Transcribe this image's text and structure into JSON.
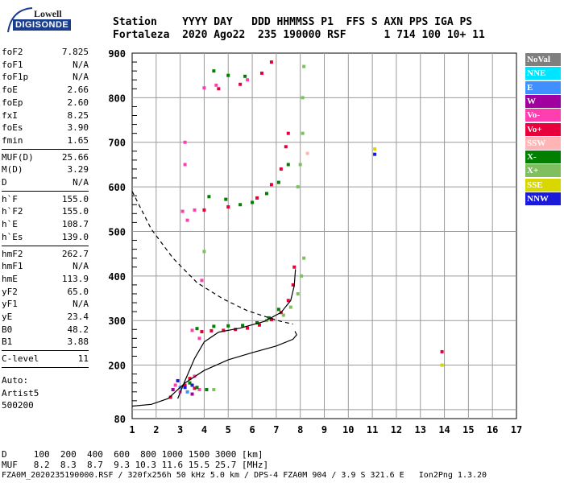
{
  "logo": {
    "line1": "Lowell",
    "line2": "DIGISONDE"
  },
  "header": {
    "line1": "Station    YYYY DAY   DDD HHMMSS P1  FFS S AXN PPS IGA PS",
    "line2": "Fortaleza  2020 Ago22  235 190000 RSF      1 714 100 10+ 11"
  },
  "params_a": [
    {
      "k": "foF2",
      "v": "7.825"
    },
    {
      "k": "foF1",
      "v": "N/A"
    },
    {
      "k": "foF1p",
      "v": "N/A"
    },
    {
      "k": "foE",
      "v": "2.66"
    },
    {
      "k": "foEp",
      "v": "2.60"
    },
    {
      "k": "fxI",
      "v": "8.25"
    },
    {
      "k": "foEs",
      "v": "3.90"
    },
    {
      "k": "fmin",
      "v": "1.65"
    }
  ],
  "params_b": [
    {
      "k": "MUF(D)",
      "v": "25.66"
    },
    {
      "k": "M(D)",
      "v": "3.29"
    },
    {
      "k": "D",
      "v": "N/A"
    }
  ],
  "params_c": [
    {
      "k": "h`F",
      "v": "155.0"
    },
    {
      "k": "h`F2",
      "v": "155.0"
    },
    {
      "k": "h`E",
      "v": "108.7"
    },
    {
      "k": "h`Es",
      "v": "139.0"
    }
  ],
  "params_d": [
    {
      "k": "hmF2",
      "v": "262.7"
    },
    {
      "k": "hmF1",
      "v": "N/A"
    },
    {
      "k": "hmE",
      "v": "113.9"
    },
    {
      "k": "yF2",
      "v": "65.0"
    },
    {
      "k": "yF1",
      "v": "N/A"
    },
    {
      "k": "yE",
      "v": "23.4"
    },
    {
      "k": "B0",
      "v": "48.2"
    },
    {
      "k": "B1",
      "v": "3.88"
    }
  ],
  "params_e": [
    {
      "k": "C-level",
      "v": "11"
    }
  ],
  "auto": {
    "l1": "Auto:",
    "l2": "Artist5",
    "l3": "500200"
  },
  "legend": [
    {
      "label": "NoVal",
      "color": "#7f7f7f",
      "text": "#ffffff"
    },
    {
      "label": "NNE",
      "color": "#00e5ff",
      "text": "#ffffff"
    },
    {
      "label": "E",
      "color": "#3f8fff",
      "text": "#ffffff"
    },
    {
      "label": "W",
      "color": "#a0009f",
      "text": "#ffffff"
    },
    {
      "label": "Vo-",
      "color": "#ff3fb0",
      "text": "#ffffff"
    },
    {
      "label": "Vo+",
      "color": "#e8003c",
      "text": "#ffffff"
    },
    {
      "label": "SSW",
      "color": "#ffb5b5",
      "text": "#ffffff"
    },
    {
      "label": "X-",
      "color": "#007f00",
      "text": "#ffffff"
    },
    {
      "label": "X+",
      "color": "#7fbf5f",
      "text": "#ffffff"
    },
    {
      "label": "SSE",
      "color": "#d8d800",
      "text": "#ffffff"
    },
    {
      "label": "NNW",
      "color": "#1a1ad8",
      "text": "#ffffff"
    }
  ],
  "bottom": {
    "line1": "D     100  200  400  600  800 1000 1500 3000 [km]",
    "line2": "MUF   8.2  8.3  8.7  9.3 10.3 11.6 15.5 25.7 [MHz]",
    "line3": "FZA0M_2020235190000.RSF / 320fx256h 50 kHz 5.0 km / DPS-4 FZA0M 904 / 3.9 S 321.6 E   Ion2Png 1.3.20"
  },
  "chart_data": {
    "type": "scatter",
    "title": "",
    "xlabel": "",
    "ylabel": "",
    "xlim": [
      1,
      17
    ],
    "ylim": [
      80,
      900
    ],
    "x_ticks": [
      1,
      2,
      3,
      4,
      5,
      6,
      7,
      8,
      9,
      10,
      11,
      12,
      13,
      14,
      15,
      16,
      17
    ],
    "y_ticks": [
      100,
      200,
      300,
      400,
      500,
      600,
      700,
      800,
      900
    ],
    "y_tick_labels": [
      "",
      "200",
      "300",
      "400",
      "500",
      "600",
      "700",
      "800",
      "900"
    ],
    "y_bottom_label": "80",
    "grid": true,
    "series": [
      {
        "name": "Vo+",
        "color": "#e8003c",
        "points": [
          [
            3.9,
            275
          ],
          [
            4.3,
            277
          ],
          [
            4.8,
            278
          ],
          [
            5.3,
            280
          ],
          [
            5.8,
            283
          ],
          [
            6.3,
            290
          ],
          [
            6.8,
            302
          ],
          [
            7.2,
            318
          ],
          [
            7.5,
            345
          ],
          [
            7.7,
            380
          ],
          [
            7.75,
            420
          ],
          [
            3.2,
            155
          ],
          [
            3.6,
            148
          ],
          [
            2.6,
            128
          ],
          [
            3.4,
            170
          ],
          [
            4.0,
            548
          ],
          [
            5.0,
            555
          ],
          [
            6.2,
            575
          ],
          [
            6.8,
            605
          ],
          [
            7.2,
            640
          ],
          [
            7.4,
            690
          ],
          [
            7.5,
            720
          ],
          [
            4.6,
            820
          ],
          [
            5.5,
            830
          ],
          [
            6.4,
            855
          ],
          [
            6.8,
            880
          ],
          [
            13.9,
            230
          ]
        ]
      },
      {
        "name": "Vo-",
        "color": "#ff3fb0",
        "points": [
          [
            3.5,
            278
          ],
          [
            3.8,
            260
          ],
          [
            3.9,
            390
          ],
          [
            3.1,
            545
          ],
          [
            3.3,
            525
          ],
          [
            3.6,
            548
          ],
          [
            3.2,
            650
          ],
          [
            3.2,
            700
          ],
          [
            4.0,
            822
          ],
          [
            4.5,
            828
          ],
          [
            5.8,
            840
          ],
          [
            3.0,
            140
          ],
          [
            2.8,
            155
          ],
          [
            3.6,
            175
          ],
          [
            3.8,
            145
          ]
        ]
      },
      {
        "name": "X-",
        "color": "#007f00",
        "points": [
          [
            3.7,
            282
          ],
          [
            4.4,
            287
          ],
          [
            5.0,
            288
          ],
          [
            5.6,
            289
          ],
          [
            6.2,
            295
          ],
          [
            6.7,
            306
          ],
          [
            7.1,
            325
          ],
          [
            4.2,
            578
          ],
          [
            4.9,
            572
          ],
          [
            5.5,
            560
          ],
          [
            6.0,
            565
          ],
          [
            6.6,
            585
          ],
          [
            7.1,
            610
          ],
          [
            7.5,
            650
          ],
          [
            4.4,
            860
          ],
          [
            5.0,
            850
          ],
          [
            5.7,
            848
          ],
          [
            3.7,
            150
          ],
          [
            4.1,
            145
          ],
          [
            3.4,
            160
          ]
        ]
      },
      {
        "name": "X+",
        "color": "#7fbf5f",
        "points": [
          [
            6.6,
            300
          ],
          [
            7.3,
            312
          ],
          [
            7.6,
            330
          ],
          [
            7.9,
            360
          ],
          [
            8.05,
            400
          ],
          [
            8.15,
            440
          ],
          [
            7.9,
            600
          ],
          [
            8.0,
            650
          ],
          [
            8.1,
            720
          ],
          [
            8.1,
            800
          ],
          [
            8.15,
            870
          ],
          [
            4.0,
            455
          ],
          [
            4.4,
            145
          ],
          [
            13.9,
            200
          ]
        ]
      },
      {
        "name": "SSW",
        "color": "#ffb5b5",
        "points": [
          [
            8.3,
            675
          ]
        ]
      },
      {
        "name": "SSE",
        "color": "#d8d800",
        "points": [
          [
            11.1,
            685
          ],
          [
            13.9,
            200
          ]
        ]
      },
      {
        "name": "NNW",
        "color": "#1a1ad8",
        "points": [
          [
            11.1,
            673
          ],
          [
            3.2,
            150
          ],
          [
            2.9,
            165
          ],
          [
            3.5,
            155
          ]
        ]
      },
      {
        "name": "E",
        "color": "#3f8fff",
        "points": [
          [
            3.3,
            140
          ],
          [
            3.0,
            150
          ]
        ]
      },
      {
        "name": "W",
        "color": "#a0009f",
        "points": [
          [
            3.5,
            135
          ],
          [
            2.7,
            145
          ]
        ]
      }
    ],
    "curves": [
      {
        "label": "true height profile",
        "style": "solid",
        "points": [
          [
            1.0,
            108
          ],
          [
            1.8,
            112
          ],
          [
            2.5,
            125
          ],
          [
            3.2,
            160
          ],
          [
            4.0,
            188
          ],
          [
            5.0,
            212
          ],
          [
            6.0,
            228
          ],
          [
            7.0,
            243
          ],
          [
            7.7,
            258
          ],
          [
            7.85,
            268
          ],
          [
            7.78,
            276
          ]
        ]
      },
      {
        "label": "electron density (left branch)",
        "style": "solid",
        "points": [
          [
            2.9,
            125
          ],
          [
            3.2,
            165
          ],
          [
            3.6,
            215
          ],
          [
            4.0,
            252
          ],
          [
            4.6,
            274
          ],
          [
            5.5,
            283
          ],
          [
            6.5,
            298
          ],
          [
            7.2,
            318
          ],
          [
            7.6,
            345
          ],
          [
            7.75,
            378
          ],
          [
            7.8,
            415
          ]
        ]
      },
      {
        "label": "topside profile",
        "style": "dashed",
        "points": [
          [
            1.0,
            590
          ],
          [
            1.8,
            505
          ],
          [
            2.7,
            440
          ],
          [
            3.7,
            385
          ],
          [
            4.8,
            348
          ],
          [
            5.8,
            322
          ],
          [
            6.6,
            308
          ],
          [
            7.2,
            298
          ],
          [
            7.7,
            292
          ]
        ]
      }
    ]
  }
}
